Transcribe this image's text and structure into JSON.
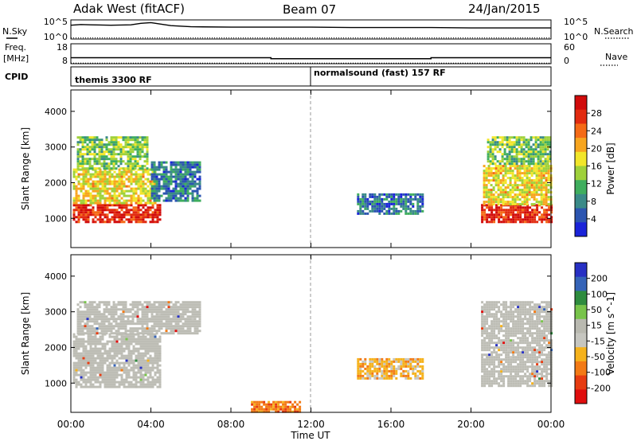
{
  "header": {
    "station": "Adak West (fitACF)",
    "beam": "Beam 07",
    "date": "24/Jan/2015"
  },
  "side_labels": {
    "nsky": "N.Sky",
    "nsearch": "N.Search",
    "freq": "Freq.",
    "mhz": "[MHz]",
    "nave": "Nave",
    "cpid": "CPID"
  },
  "cpid_labels": {
    "left": "themis 3300 RF",
    "right": "normalsound (fast) 157 RF"
  },
  "colors": {
    "power_scale": [
      "#1a23d9",
      "#2c55b0",
      "#3a8a88",
      "#3fae5e",
      "#9fd13b",
      "#f2e62a",
      "#f7a51f",
      "#f56a16",
      "#e22b10",
      "#d10b0b"
    ],
    "velocity_scale": [
      "#2730c4",
      "#3564b8",
      "#2e8c3e",
      "#78c44a",
      "#b9b9b0",
      "#c6c6c0",
      "#f5b21c",
      "#f37a15",
      "#e73c11",
      "#e00e0e"
    ],
    "ground_scatter": "#bdbdb5"
  },
  "chart_data": [
    {
      "type": "line",
      "title": "",
      "left_ticks": [
        "10^5",
        "10^0"
      ],
      "right_ticks": [
        "10^5",
        "10^0"
      ],
      "series": [
        {
          "name": "N.Sky",
          "x_hours": [
            0,
            0.5,
            1,
            2,
            3,
            3.5,
            4,
            4.5,
            5,
            6,
            8,
            10,
            12,
            14,
            16,
            18,
            20,
            22,
            24
          ],
          "values": [
            3.6,
            3.8,
            3.7,
            3.6,
            3.7,
            4.1,
            4.3,
            3.9,
            3.5,
            3.2,
            3.1,
            3.1,
            3.1,
            3.0,
            3.0,
            3.0,
            2.9,
            2.9,
            2.9
          ]
        },
        {
          "name": "N.Search",
          "x_hours": [
            0,
            24
          ],
          "values": [
            0.3,
            0.3
          ]
        }
      ]
    },
    {
      "type": "line",
      "left_ticks": [
        "18",
        "8"
      ],
      "right_ticks": [
        "60",
        "0"
      ],
      "series": [
        {
          "name": "Freq. [MHz]",
          "x_hours": [
            0,
            10,
            10,
            18,
            18,
            24
          ],
          "values": [
            11,
            11,
            10.5,
            10.5,
            11,
            11
          ]
        },
        {
          "name": "Nave",
          "x_hours": [
            0,
            24
          ],
          "values": [
            2,
            2
          ]
        }
      ],
      "cpid_change_hours": [
        12
      ]
    },
    {
      "type": "heatmap",
      "ylabel": "Slant Range [km]",
      "y_ticks": [
        "1000",
        "2000",
        "3000",
        "4000"
      ],
      "ylim": [
        180,
        4600
      ],
      "x_ticks": [
        "00:00",
        "04:00",
        "08:00",
        "12:00",
        "16:00",
        "20:00",
        "00:00"
      ],
      "xlim_hours": [
        0,
        24
      ],
      "colorbar": {
        "label": "Power [dB]",
        "ticks": [
          "4",
          "8",
          "12",
          "16",
          "20",
          "24",
          "28"
        ],
        "range": [
          0,
          30
        ]
      },
      "echo_regions": [
        {
          "t0": 0.1,
          "t1": 4.4,
          "r0": 900,
          "r1": 1400,
          "value": 28
        },
        {
          "t0": 0.1,
          "t1": 4.2,
          "r0": 1400,
          "r1": 2400,
          "value": 17
        },
        {
          "t0": 0.3,
          "t1": 3.8,
          "r0": 2400,
          "r1": 3300,
          "value": 12
        },
        {
          "t0": 4.0,
          "t1": 6.4,
          "r0": 1500,
          "r1": 2600,
          "value": 6
        },
        {
          "t0": 14.3,
          "t1": 17.6,
          "r0": 1150,
          "r1": 1700,
          "value": 5
        },
        {
          "t0": 20.5,
          "t1": 24,
          "r0": 900,
          "r1": 1400,
          "value": 28
        },
        {
          "t0": 20.6,
          "t1": 24,
          "r0": 1400,
          "r1": 2500,
          "value": 17
        },
        {
          "t0": 20.8,
          "t1": 24,
          "r0": 2500,
          "r1": 3300,
          "value": 12
        }
      ]
    },
    {
      "type": "heatmap",
      "ylabel": "Slant Range [km]",
      "y_ticks": [
        "1000",
        "2000",
        "3000",
        "4000"
      ],
      "ylim": [
        180,
        4600
      ],
      "x_ticks": [
        "00:00",
        "04:00",
        "08:00",
        "12:00",
        "16:00",
        "20:00",
        "00:00"
      ],
      "xlabel": "Time UT",
      "xlim_hours": [
        0,
        24
      ],
      "colorbar": {
        "label": "Velocity [m s^-1]",
        "ticks": [
          "200",
          "100",
          "50",
          "15",
          "-15",
          "-50",
          "-100",
          "-200"
        ],
        "range": [
          -250,
          250
        ]
      },
      "echo_regions": [
        {
          "t0": 0.1,
          "t1": 4.4,
          "r0": 900,
          "r1": 2400,
          "value": 0,
          "ground_scatter": true
        },
        {
          "t0": 0.3,
          "t1": 6.4,
          "r0": 2400,
          "r1": 3300,
          "value": 0,
          "ground_scatter": true
        },
        {
          "t0": 9.0,
          "t1": 11.5,
          "r0": 200,
          "r1": 500,
          "value": -120
        },
        {
          "t0": 14.3,
          "t1": 17.6,
          "r0": 1150,
          "r1": 1700,
          "value": -60
        },
        {
          "t0": 20.5,
          "t1": 24,
          "r0": 900,
          "r1": 3300,
          "value": 0,
          "ground_scatter": true
        }
      ]
    }
  ]
}
